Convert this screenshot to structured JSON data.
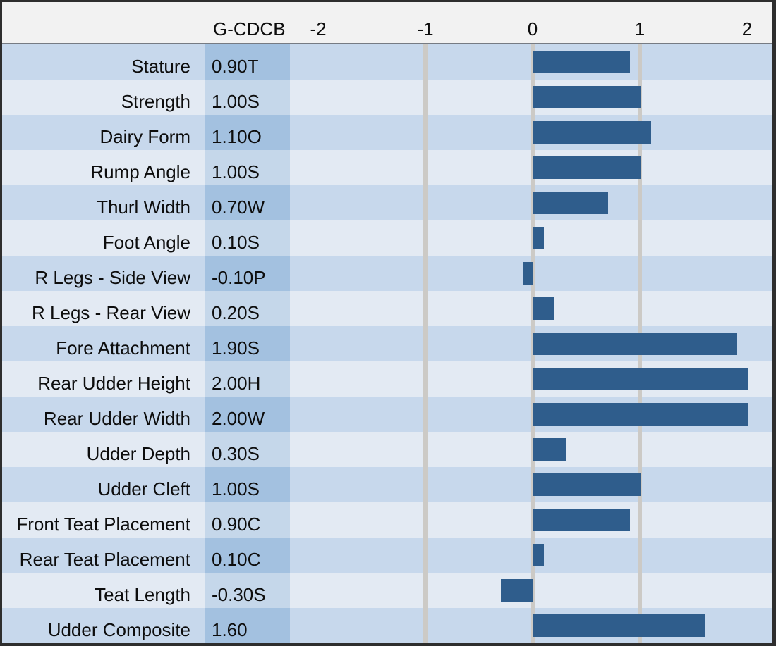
{
  "header": {
    "value_column_label": "G-CDCB"
  },
  "chart_data": {
    "type": "bar",
    "orientation": "horizontal",
    "title": "",
    "xlabel": "",
    "ylabel": "",
    "xlim": [
      -2,
      2
    ],
    "x_ticks": [
      -2,
      -1,
      0,
      1,
      2
    ],
    "x_tick_labels": [
      "-2",
      "-1",
      "0",
      "1",
      "2"
    ],
    "gridline_values": [
      -1,
      0,
      1
    ],
    "grid": true,
    "legend_position": "none",
    "categories": [
      "Stature",
      "Strength",
      "Dairy Form",
      "Rump Angle",
      "Thurl Width",
      "Foot Angle",
      "R Legs - Side View",
      "R Legs - Rear View",
      "Fore Attachment",
      "Rear Udder Height",
      "Rear Udder Width",
      "Udder Depth",
      "Udder Cleft",
      "Front Teat Placement",
      "Rear Teat Placement",
      "Teat Length",
      "Udder Composite"
    ],
    "value_labels": [
      "0.90T",
      "1.00S",
      "1.10O",
      "1.00S",
      "0.70W",
      "0.10S",
      "-0.10P",
      "0.20S",
      "1.90S",
      "2.00H",
      "2.00W",
      "0.30S",
      "1.00S",
      "0.90C",
      "0.10C",
      "-0.30S",
      "1.60"
    ],
    "values": [
      0.9,
      1.0,
      1.1,
      1.0,
      0.7,
      0.1,
      -0.1,
      0.2,
      1.9,
      2.0,
      2.0,
      0.3,
      1.0,
      0.9,
      0.1,
      -0.3,
      1.6
    ]
  },
  "colors": {
    "bar": "#2f5d8c",
    "row-dark": "#c7d8ec",
    "row-light": "#e3eaf3",
    "value-dark": "#a3c1e0",
    "value-light": "#c5d7ea",
    "gridline": "#cccac6",
    "header-bg": "#f2f2f2",
    "frame": "#2e2e2e",
    "divider": "#767b83",
    "text": "#0d0d0d"
  }
}
